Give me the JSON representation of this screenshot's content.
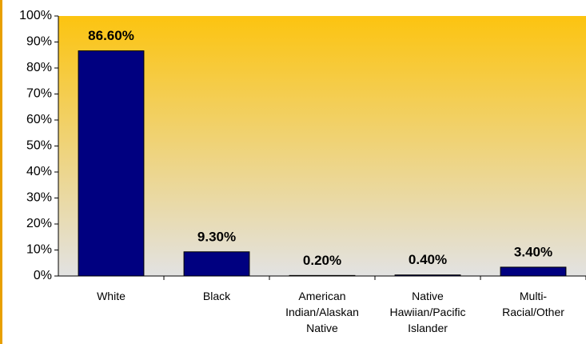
{
  "chart_data": {
    "type": "bar",
    "categories": [
      "White",
      "Black",
      "American Indian/Alaskan Native",
      "Native Hawiian/Pacific Islander",
      "Multi-Racial/Other"
    ],
    "values": [
      86.6,
      9.3,
      0.2,
      0.4,
      3.4
    ],
    "value_labels": [
      "86.60%",
      "9.30%",
      "0.20%",
      "0.40%",
      "3.40%"
    ],
    "color": "#000080",
    "ylim": [
      0,
      100
    ],
    "yticks": [
      {
        "value": 0,
        "label": "0%"
      },
      {
        "value": 10,
        "label": "10%"
      },
      {
        "value": 20,
        "label": "20%"
      },
      {
        "value": 30,
        "label": "30%"
      },
      {
        "value": 40,
        "label": "40%"
      },
      {
        "value": 50,
        "label": "50%"
      },
      {
        "value": 60,
        "label": "60%"
      },
      {
        "value": 70,
        "label": "70%"
      },
      {
        "value": 80,
        "label": "80%"
      },
      {
        "value": 90,
        "label": "90%"
      },
      {
        "value": 100,
        "label": "100%"
      }
    ],
    "grid": false
  }
}
